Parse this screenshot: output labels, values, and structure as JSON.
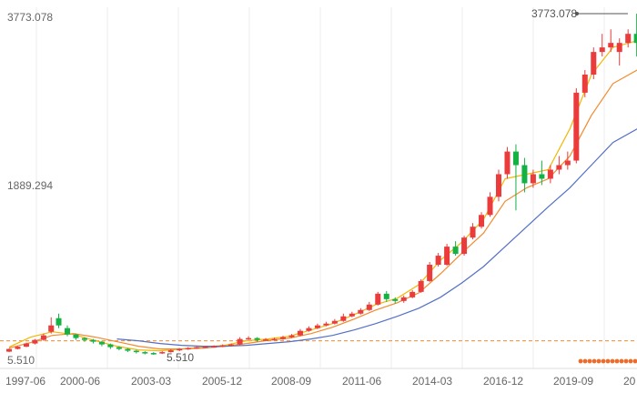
{
  "chart_data": {
    "type": "candlestick",
    "y_axis": {
      "min": 5.51,
      "max": 3773.078,
      "ticks": [
        "3773.078",
        "1889.294",
        "5.510"
      ]
    },
    "x_axis": {
      "ticks": [
        "1997-06",
        "2000-06",
        "2003-03",
        "2005-12",
        "2008-09",
        "2011-06",
        "2014-03",
        "2016-12",
        "2019-09",
        "20"
      ]
    },
    "annotations": {
      "max_label": "3773.078",
      "min_label": "5.510"
    },
    "candles": [
      {
        "t": 1997.0,
        "o": 40,
        "c": 70,
        "h": 75,
        "l": 35
      },
      {
        "t": 1997.4,
        "o": 70,
        "c": 95,
        "h": 100,
        "l": 65
      },
      {
        "t": 1997.8,
        "o": 95,
        "c": 130,
        "h": 140,
        "l": 90
      },
      {
        "t": 1998.2,
        "o": 130,
        "c": 170,
        "h": 180,
        "l": 120
      },
      {
        "t": 1998.6,
        "o": 170,
        "c": 220,
        "h": 240,
        "l": 160
      },
      {
        "t": 1998.95,
        "o": 260,
        "c": 330,
        "h": 420,
        "l": 240
      },
      {
        "t": 1999.3,
        "o": 410,
        "c": 330,
        "h": 460,
        "l": 300
      },
      {
        "t": 1999.7,
        "o": 300,
        "c": 230,
        "h": 330,
        "l": 210
      },
      {
        "t": 2000.1,
        "o": 230,
        "c": 190,
        "h": 240,
        "l": 170
      },
      {
        "t": 2000.5,
        "o": 190,
        "c": 170,
        "h": 200,
        "l": 150
      },
      {
        "t": 2000.9,
        "o": 170,
        "c": 150,
        "h": 180,
        "l": 130
      },
      {
        "t": 2001.3,
        "o": 150,
        "c": 120,
        "h": 160,
        "l": 100
      },
      {
        "t": 2001.7,
        "o": 120,
        "c": 90,
        "h": 130,
        "l": 70
      },
      {
        "t": 2002.1,
        "o": 90,
        "c": 70,
        "h": 100,
        "l": 55
      },
      {
        "t": 2002.5,
        "o": 70,
        "c": 50,
        "h": 80,
        "l": 35
      },
      {
        "t": 2002.9,
        "o": 50,
        "c": 35,
        "h": 60,
        "l": 20
      },
      {
        "t": 2003.3,
        "o": 35,
        "c": 25,
        "h": 45,
        "l": 10
      },
      {
        "t": 2003.7,
        "o": 25,
        "c": 20,
        "h": 35,
        "l": 5.51
      },
      {
        "t": 2004.1,
        "o": 20,
        "c": 35,
        "h": 45,
        "l": 15
      },
      {
        "t": 2004.5,
        "o": 35,
        "c": 55,
        "h": 65,
        "l": 30
      },
      {
        "t": 2004.9,
        "o": 55,
        "c": 70,
        "h": 80,
        "l": 45
      },
      {
        "t": 2005.3,
        "o": 70,
        "c": 80,
        "h": 90,
        "l": 60
      },
      {
        "t": 2005.7,
        "o": 80,
        "c": 90,
        "h": 100,
        "l": 70
      },
      {
        "t": 2006.1,
        "o": 90,
        "c": 95,
        "h": 105,
        "l": 80
      },
      {
        "t": 2006.5,
        "o": 95,
        "c": 100,
        "h": 110,
        "l": 85
      },
      {
        "t": 2006.9,
        "o": 100,
        "c": 110,
        "h": 120,
        "l": 90
      },
      {
        "t": 2007.3,
        "o": 110,
        "c": 120,
        "h": 130,
        "l": 100
      },
      {
        "t": 2007.7,
        "o": 120,
        "c": 180,
        "h": 200,
        "l": 110
      },
      {
        "t": 2008.1,
        "o": 180,
        "c": 190,
        "h": 210,
        "l": 170
      },
      {
        "t": 2008.5,
        "o": 190,
        "c": 170,
        "h": 200,
        "l": 150
      },
      {
        "t": 2008.9,
        "o": 170,
        "c": 175,
        "h": 190,
        "l": 160
      },
      {
        "t": 2009.3,
        "o": 175,
        "c": 180,
        "h": 195,
        "l": 165
      },
      {
        "t": 2009.7,
        "o": 180,
        "c": 200,
        "h": 215,
        "l": 170
      },
      {
        "t": 2010.1,
        "o": 200,
        "c": 220,
        "h": 235,
        "l": 190
      },
      {
        "t": 2010.5,
        "o": 220,
        "c": 270,
        "h": 290,
        "l": 210
      },
      {
        "t": 2010.9,
        "o": 270,
        "c": 300,
        "h": 320,
        "l": 260
      },
      {
        "t": 2011.3,
        "o": 300,
        "c": 330,
        "h": 350,
        "l": 290
      },
      {
        "t": 2011.7,
        "o": 330,
        "c": 350,
        "h": 370,
        "l": 320
      },
      {
        "t": 2012.1,
        "o": 350,
        "c": 380,
        "h": 400,
        "l": 340
      },
      {
        "t": 2012.5,
        "o": 380,
        "c": 430,
        "h": 460,
        "l": 370
      },
      {
        "t": 2012.9,
        "o": 430,
        "c": 460,
        "h": 480,
        "l": 420
      },
      {
        "t": 2013.3,
        "o": 460,
        "c": 500,
        "h": 520,
        "l": 450
      },
      {
        "t": 2013.7,
        "o": 500,
        "c": 560,
        "h": 590,
        "l": 490
      },
      {
        "t": 2014.1,
        "o": 560,
        "c": 680,
        "h": 700,
        "l": 550
      },
      {
        "t": 2014.5,
        "o": 680,
        "c": 620,
        "h": 710,
        "l": 590
      },
      {
        "t": 2014.9,
        "o": 620,
        "c": 600,
        "h": 640,
        "l": 570
      },
      {
        "t": 2015.3,
        "o": 600,
        "c": 640,
        "h": 660,
        "l": 580
      },
      {
        "t": 2015.7,
        "o": 640,
        "c": 700,
        "h": 720,
        "l": 630
      },
      {
        "t": 2016.1,
        "o": 700,
        "c": 820,
        "h": 840,
        "l": 690
      },
      {
        "t": 2016.5,
        "o": 820,
        "c": 1000,
        "h": 1030,
        "l": 810
      },
      {
        "t": 2016.9,
        "o": 1000,
        "c": 1100,
        "h": 1130,
        "l": 980
      },
      {
        "t": 2017.3,
        "o": 1000,
        "c": 1200,
        "h": 1230,
        "l": 990
      },
      {
        "t": 2017.7,
        "o": 1200,
        "c": 1120,
        "h": 1260,
        "l": 1100
      },
      {
        "t": 2018.1,
        "o": 1120,
        "c": 1300,
        "h": 1320,
        "l": 1100
      },
      {
        "t": 2018.5,
        "o": 1300,
        "c": 1420,
        "h": 1460,
        "l": 1280
      },
      {
        "t": 2018.9,
        "o": 1420,
        "c": 1550,
        "h": 1580,
        "l": 1400
      },
      {
        "t": 2019.3,
        "o": 1550,
        "c": 1750,
        "h": 1800,
        "l": 1530
      },
      {
        "t": 2019.7,
        "o": 1750,
        "c": 2000,
        "h": 2050,
        "l": 1700
      },
      {
        "t": 2020.1,
        "o": 2000,
        "c": 2250,
        "h": 2300,
        "l": 1950
      },
      {
        "t": 2020.5,
        "o": 2250,
        "c": 2100,
        "h": 2330,
        "l": 1600
      },
      {
        "t": 2020.9,
        "o": 2100,
        "c": 1900,
        "h": 2180,
        "l": 1800
      },
      {
        "t": 2021.3,
        "o": 1900,
        "c": 2000,
        "h": 2050,
        "l": 1850
      },
      {
        "t": 2021.7,
        "o": 2000,
        "c": 1950,
        "h": 2150,
        "l": 1880
      },
      {
        "t": 2022.1,
        "o": 1950,
        "c": 2050,
        "h": 2100,
        "l": 1900
      },
      {
        "t": 2022.5,
        "o": 2050,
        "c": 2100,
        "h": 2200,
        "l": 2000
      },
      {
        "t": 2022.9,
        "o": 2100,
        "c": 2150,
        "h": 2250,
        "l": 2050
      },
      {
        "t": 2023.3,
        "o": 2150,
        "c": 2900,
        "h": 2950,
        "l": 2120
      },
      {
        "t": 2023.7,
        "o": 2900,
        "c": 3100,
        "h": 3150,
        "l": 2850
      },
      {
        "t": 2024.1,
        "o": 3100,
        "c": 3350,
        "h": 3400,
        "l": 3050
      },
      {
        "t": 2024.5,
        "o": 3350,
        "c": 3400,
        "h": 3550,
        "l": 3300
      },
      {
        "t": 2024.9,
        "o": 3400,
        "c": 3450,
        "h": 3600,
        "l": 3350
      },
      {
        "t": 2025.3,
        "o": 3350,
        "c": 3450,
        "h": 3500,
        "l": 3200
      },
      {
        "t": 2025.7,
        "o": 3450,
        "c": 3550,
        "h": 3600,
        "l": 3400
      },
      {
        "t": 2026.1,
        "o": 3550,
        "c": 3450,
        "h": 3773.078,
        "l": 3300
      },
      {
        "t": 2026.5,
        "o": 3450,
        "c": 3500,
        "h": 3680,
        "l": 3350
      }
    ],
    "ma_lines": [
      {
        "color": "#f2b705",
        "points": [
          [
            1997.0,
            90
          ],
          [
            1998.0,
            200
          ],
          [
            1999.0,
            260
          ],
          [
            2000.0,
            230
          ],
          [
            2001.0,
            160
          ],
          [
            2002.0,
            100
          ],
          [
            2003.0,
            60
          ],
          [
            2004.0,
            50
          ],
          [
            2005.0,
            70
          ],
          [
            2006.0,
            90
          ],
          [
            2007.0,
            110
          ],
          [
            2008.0,
            160
          ],
          [
            2009.0,
            180
          ],
          [
            2010.0,
            210
          ],
          [
            2011.0,
            280
          ],
          [
            2012.0,
            350
          ],
          [
            2013.0,
            450
          ],
          [
            2014.0,
            560
          ],
          [
            2015.0,
            630
          ],
          [
            2016.0,
            780
          ],
          [
            2017.0,
            1050
          ],
          [
            2018.0,
            1250
          ],
          [
            2019.0,
            1500
          ],
          [
            2020.0,
            1950
          ],
          [
            2021.0,
            2000
          ],
          [
            2022.0,
            2050
          ],
          [
            2023.0,
            2500
          ],
          [
            2024.0,
            3100
          ],
          [
            2025.0,
            3400
          ],
          [
            2026.5,
            3500
          ]
        ]
      },
      {
        "color": "#f28b30",
        "points": [
          [
            1997.0,
            80
          ],
          [
            1998.0,
            140
          ],
          [
            1999.0,
            220
          ],
          [
            2000.0,
            240
          ],
          [
            2001.0,
            200
          ],
          [
            2002.0,
            150
          ],
          [
            2003.0,
            100
          ],
          [
            2004.0,
            70
          ],
          [
            2005.0,
            70
          ],
          [
            2006.0,
            80
          ],
          [
            2007.0,
            100
          ],
          [
            2008.0,
            130
          ],
          [
            2009.0,
            165
          ],
          [
            2010.0,
            190
          ],
          [
            2011.0,
            240
          ],
          [
            2012.0,
            310
          ],
          [
            2013.0,
            400
          ],
          [
            2014.0,
            500
          ],
          [
            2015.0,
            580
          ],
          [
            2016.0,
            690
          ],
          [
            2017.0,
            900
          ],
          [
            2018.0,
            1130
          ],
          [
            2019.0,
            1350
          ],
          [
            2020.0,
            1700
          ],
          [
            2021.0,
            1850
          ],
          [
            2022.0,
            1950
          ],
          [
            2023.0,
            2200
          ],
          [
            2024.0,
            2650
          ],
          [
            2025.0,
            3000
          ],
          [
            2026.5,
            3200
          ]
        ]
      },
      {
        "color": "#5470c6",
        "points": [
          [
            2002.0,
            180
          ],
          [
            2003.0,
            160
          ],
          [
            2004.0,
            130
          ],
          [
            2005.0,
            110
          ],
          [
            2006.0,
            100
          ],
          [
            2007.0,
            100
          ],
          [
            2008.0,
            110
          ],
          [
            2009.0,
            130
          ],
          [
            2010.0,
            150
          ],
          [
            2011.0,
            180
          ],
          [
            2012.0,
            220
          ],
          [
            2013.0,
            280
          ],
          [
            2014.0,
            350
          ],
          [
            2015.0,
            430
          ],
          [
            2016.0,
            520
          ],
          [
            2017.0,
            640
          ],
          [
            2018.0,
            800
          ],
          [
            2019.0,
            980
          ],
          [
            2020.0,
            1200
          ],
          [
            2021.0,
            1420
          ],
          [
            2022.0,
            1640
          ],
          [
            2023.0,
            1850
          ],
          [
            2024.0,
            2100
          ],
          [
            2025.0,
            2350
          ],
          [
            2026.5,
            2550
          ]
        ]
      }
    ],
    "colors": {
      "up": "#eb3b3b",
      "down": "#14b143",
      "reference_line": "#f28b30",
      "marker_dots": "#f06a28"
    }
  }
}
